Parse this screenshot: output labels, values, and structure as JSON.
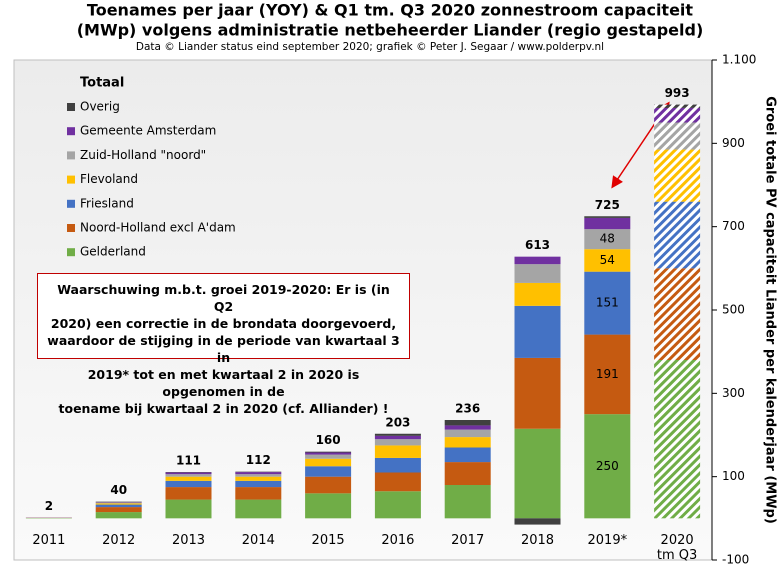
{
  "chart_data": {
    "type": "stacked-bar",
    "title": [
      "Toenames per jaar (YOY) & Q1 tm. Q3 2020 zonnestroom capaciteit",
      "(MWp) volgens administratie  netbeheerder Liander (regio gestapeld)"
    ],
    "subtitle": "Data © Liander status eind september 2020; grafiek © Peter J. Segaar / www.polderpv.nl",
    "y_label": "Groei totale PV capaciteit Liander per kalenderjaar (MWp)",
    "legend_title": "Totaal",
    "annotation": [
      "Waarschuwing  m.b.t. groei  2019-2020:  Er is (in Q2",
      "2020)  een correctie in de brondata doorgevoerd,",
      "waardoor de stijging in de periode van kwartaal  3 in",
      "2019*  tot en met kwartaal  2 in 2020 is opgenomen in de",
      "toename bij kwartaal  2 in 2020  (cf. Alliander)  !"
    ],
    "categories": [
      "2011",
      "2012",
      "2013",
      "2014",
      "2015",
      "2016",
      "2017",
      "2018",
      "2019*",
      "2020 tm Q3"
    ],
    "series": [
      {
        "name": "Gelderland",
        "color": "#70ad47",
        "values": [
          1,
          15,
          45,
          45,
          60,
          65,
          80,
          215,
          250,
          380
        ]
      },
      {
        "name": "Noord-Holland excl A'dam",
        "color": "#c55a11",
        "values": [
          0.5,
          12,
          30,
          30,
          40,
          45,
          55,
          170,
          191,
          220
        ]
      },
      {
        "name": "Friesland",
        "color": "#4472c4",
        "values": [
          0,
          6,
          15,
          15,
          25,
          35,
          35,
          125,
          151,
          160
        ]
      },
      {
        "name": "Flevoland",
        "color": "#ffc000",
        "values": [
          0,
          3,
          10,
          10,
          18,
          30,
          25,
          55,
          54,
          125
        ]
      },
      {
        "name": "Zuid-Holland \"noord\"",
        "color": "#a5a5a5",
        "values": [
          0,
          2,
          6,
          6,
          10,
          15,
          18,
          45,
          48,
          65
        ]
      },
      {
        "name": "Gemeente Amsterdam",
        "color": "#7030a0",
        "values": [
          0.5,
          1,
          4,
          5,
          5,
          8,
          10,
          18,
          27,
          35
        ]
      },
      {
        "name": "Overig",
        "color": "#404040",
        "values": [
          0,
          1,
          1,
          1,
          2,
          5,
          13,
          -15,
          4,
          8
        ]
      }
    ],
    "totals": [
      2,
      40,
      111,
      112,
      160,
      203,
      236,
      613,
      725,
      993
    ],
    "hatched_category": "2020 tm Q3",
    "labelled_category": "2019*",
    "ylim": [
      -100,
      1100
    ],
    "yticks": [
      -100,
      100,
      300,
      500,
      700,
      900,
      {
        "value": 1100,
        "label": "1.100"
      }
    ],
    "grid": false
  }
}
